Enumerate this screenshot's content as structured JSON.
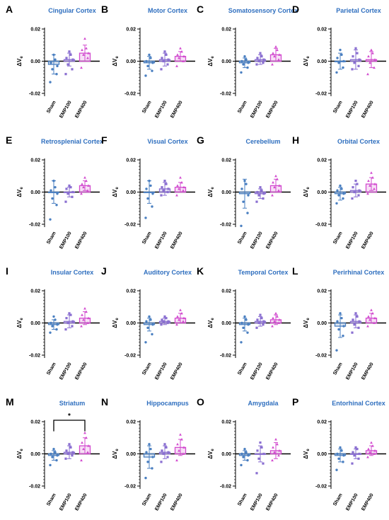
{
  "figure": {
    "groups": [
      "Sham",
      "EMP100",
      "EMP400"
    ],
    "group_colors": [
      "#4a7fc1",
      "#8a6fd1",
      "#d24ccf"
    ],
    "y_label_main": "ΔV",
    "y_label_sub": "e"
  },
  "chart_data": [
    {
      "letter": "A",
      "title": "Cingular Cortex",
      "type": "bar",
      "categories": [
        "Sham",
        "EMP100",
        "EMP400"
      ],
      "ylim": [
        -0.02,
        0.02
      ],
      "yticks": [
        0.02,
        0.0,
        -0.02
      ],
      "ytick_labels": [
        "0.02",
        "0.00",
        "-0.02"
      ],
      "series": [
        {
          "mean": -0.002,
          "sd": 0.006,
          "points": [
            -0.013,
            -0.008,
            -0.005,
            -0.003,
            -0.001,
            0.001,
            0.004
          ]
        },
        {
          "mean": 0.001,
          "sd": 0.004,
          "points": [
            -0.008,
            -0.005,
            -0.002,
            0.001,
            0.002,
            0.004,
            0.006
          ]
        },
        {
          "mean": 0.005,
          "sd": 0.005,
          "points": [
            -0.004,
            0.002,
            0.004,
            0.005,
            0.007,
            0.008,
            0.014
          ]
        }
      ]
    },
    {
      "letter": "B",
      "title": "Motor Cortex",
      "type": "bar",
      "categories": [
        "Sham",
        "EMP100",
        "EMP400"
      ],
      "ylim": [
        -0.02,
        0.02
      ],
      "yticks": [
        0.02,
        0.0,
        -0.02
      ],
      "ytick_labels": [
        "0.02",
        "0.00",
        "-0.02"
      ],
      "series": [
        {
          "mean": -0.001,
          "sd": 0.004,
          "points": [
            -0.009,
            -0.006,
            -0.003,
            -0.001,
            0.0,
            0.002,
            0.004
          ]
        },
        {
          "mean": 0.001,
          "sd": 0.004,
          "points": [
            -0.005,
            -0.002,
            0.0,
            0.001,
            0.002,
            0.004,
            0.006
          ]
        },
        {
          "mean": 0.003,
          "sd": 0.003,
          "points": [
            -0.003,
            0.0,
            0.002,
            0.003,
            0.004,
            0.006,
            0.008
          ]
        }
      ]
    },
    {
      "letter": "C",
      "title": "Somatosensory Cortex",
      "type": "bar",
      "categories": [
        "Sham",
        "EMP100",
        "EMP400"
      ],
      "ylim": [
        -0.02,
        0.02
      ],
      "yticks": [
        0.02,
        0.0,
        -0.02
      ],
      "ytick_labels": [
        "0.02",
        "0.00",
        "-0.02"
      ],
      "series": [
        {
          "mean": -0.001,
          "sd": 0.003,
          "points": [
            -0.007,
            -0.004,
            -0.002,
            -0.001,
            0.0,
            0.001,
            0.003
          ]
        },
        {
          "mean": 0.001,
          "sd": 0.003,
          "points": [
            -0.002,
            -0.001,
            0.0,
            0.001,
            0.002,
            0.003,
            0.005
          ]
        },
        {
          "mean": 0.004,
          "sd": 0.004,
          "points": [
            -0.002,
            0.001,
            0.003,
            0.004,
            0.005,
            0.007,
            0.009
          ]
        }
      ]
    },
    {
      "letter": "D",
      "title": "Parietal Cortex",
      "type": "bar",
      "categories": [
        "Sham",
        "EMP100",
        "EMP400"
      ],
      "ylim": [
        -0.02,
        0.02
      ],
      "yticks": [
        0.02,
        0.0,
        -0.02
      ],
      "ytick_labels": [
        "0.02",
        "0.00",
        "-0.02"
      ],
      "series": [
        {
          "mean": 0.0,
          "sd": 0.005,
          "points": [
            -0.007,
            -0.004,
            -0.001,
            0.0,
            0.002,
            0.004,
            0.007
          ]
        },
        {
          "mean": 0.001,
          "sd": 0.006,
          "points": [
            -0.005,
            -0.003,
            -0.001,
            0.001,
            0.003,
            0.005,
            0.008
          ]
        },
        {
          "mean": 0.001,
          "sd": 0.005,
          "points": [
            -0.008,
            -0.004,
            -0.001,
            0.001,
            0.003,
            0.005,
            0.007
          ]
        }
      ]
    },
    {
      "letter": "E",
      "title": "Retrosplenial Cortex",
      "type": "bar",
      "categories": [
        "Sham",
        "EMP100",
        "EMP400"
      ],
      "ylim": [
        -0.02,
        0.02
      ],
      "yticks": [
        0.02,
        0.0,
        -0.02
      ],
      "ytick_labels": [
        "0.02",
        "0.00",
        "-0.02"
      ],
      "series": [
        {
          "mean": 0.0,
          "sd": 0.007,
          "points": [
            -0.017,
            -0.008,
            -0.004,
            -0.001,
            0.001,
            0.003,
            0.007
          ]
        },
        {
          "mean": 0.0,
          "sd": 0.003,
          "points": [
            -0.006,
            -0.003,
            -0.001,
            0.0,
            0.002,
            0.003,
            0.004
          ]
        },
        {
          "mean": 0.004,
          "sd": 0.003,
          "points": [
            -0.001,
            0.001,
            0.003,
            0.004,
            0.005,
            0.007,
            0.009
          ]
        }
      ]
    },
    {
      "letter": "F",
      "title": "Visual Cortex",
      "type": "bar",
      "categories": [
        "Sham",
        "EMP100",
        "EMP400"
      ],
      "ylim": [
        -0.02,
        0.02
      ],
      "yticks": [
        0.02,
        0.0,
        -0.02
      ],
      "ytick_labels": [
        "0.02",
        "0.00",
        "-0.02"
      ],
      "series": [
        {
          "mean": 0.0,
          "sd": 0.007,
          "points": [
            -0.016,
            -0.009,
            -0.004,
            -0.001,
            0.002,
            0.004,
            0.007
          ]
        },
        {
          "mean": 0.002,
          "sd": 0.004,
          "points": [
            -0.002,
            0.0,
            0.001,
            0.002,
            0.003,
            0.005,
            0.007
          ]
        },
        {
          "mean": 0.003,
          "sd": 0.003,
          "points": [
            -0.002,
            0.001,
            0.002,
            0.003,
            0.004,
            0.006,
            0.009
          ]
        }
      ]
    },
    {
      "letter": "G",
      "title": "Cerebellum",
      "type": "bar",
      "categories": [
        "Sham",
        "EMP100",
        "EMP400"
      ],
      "ylim": [
        -0.02,
        0.02
      ],
      "yticks": [
        0.02,
        0.0,
        -0.02
      ],
      "ytick_labels": [
        "0.02",
        "0.00",
        "-0.02"
      ],
      "series": [
        {
          "mean": -0.001,
          "sd": 0.009,
          "points": [
            -0.021,
            -0.013,
            -0.006,
            -0.002,
            0.002,
            0.005,
            0.007
          ]
        },
        {
          "mean": -0.001,
          "sd": 0.003,
          "points": [
            -0.006,
            -0.004,
            -0.002,
            -0.001,
            0.0,
            0.001,
            0.003
          ]
        },
        {
          "mean": 0.004,
          "sd": 0.004,
          "points": [
            -0.002,
            0.001,
            0.003,
            0.004,
            0.006,
            0.008,
            0.01
          ]
        }
      ]
    },
    {
      "letter": "H",
      "title": "Orbital Cortex",
      "type": "bar",
      "categories": [
        "Sham",
        "EMP100",
        "EMP400"
      ],
      "ylim": [
        -0.02,
        0.02
      ],
      "yticks": [
        0.02,
        0.0,
        -0.02
      ],
      "ytick_labels": [
        "0.02",
        "0.00",
        "-0.02"
      ],
      "series": [
        {
          "mean": -0.001,
          "sd": 0.004,
          "points": [
            -0.007,
            -0.004,
            -0.002,
            -0.001,
            0.001,
            0.002,
            0.004
          ]
        },
        {
          "mean": 0.001,
          "sd": 0.004,
          "points": [
            -0.004,
            -0.002,
            0.0,
            0.001,
            0.003,
            0.005,
            0.007
          ]
        },
        {
          "mean": 0.005,
          "sd": 0.004,
          "points": [
            -0.001,
            0.002,
            0.004,
            0.005,
            0.007,
            0.009,
            0.012
          ]
        }
      ]
    },
    {
      "letter": "I",
      "title": "Insular Cortex",
      "type": "bar",
      "categories": [
        "Sham",
        "EMP100",
        "EMP400"
      ],
      "ylim": [
        -0.02,
        0.02
      ],
      "yticks": [
        0.02,
        0.0,
        -0.02
      ],
      "ytick_labels": [
        "0.02",
        "0.00",
        "-0.02"
      ],
      "series": [
        {
          "mean": -0.001,
          "sd": 0.003,
          "points": [
            -0.006,
            -0.004,
            -0.002,
            -0.001,
            0.0,
            0.002,
            0.004
          ]
        },
        {
          "mean": 0.001,
          "sd": 0.004,
          "points": [
            -0.004,
            -0.002,
            0.0,
            0.001,
            0.003,
            0.005,
            0.006
          ]
        },
        {
          "mean": 0.003,
          "sd": 0.004,
          "points": [
            -0.002,
            0.0,
            0.002,
            0.003,
            0.005,
            0.007,
            0.009
          ]
        }
      ]
    },
    {
      "letter": "J",
      "title": "Auditory Cortex",
      "type": "bar",
      "categories": [
        "Sham",
        "EMP100",
        "EMP400"
      ],
      "ylim": [
        -0.02,
        0.02
      ],
      "yticks": [
        0.02,
        0.0,
        -0.02
      ],
      "ytick_labels": [
        "0.02",
        "0.00",
        "-0.02"
      ],
      "series": [
        {
          "mean": -0.001,
          "sd": 0.004,
          "points": [
            -0.012,
            -0.007,
            -0.003,
            -0.001,
            0.001,
            0.002,
            0.004
          ]
        },
        {
          "mean": 0.001,
          "sd": 0.002,
          "points": [
            -0.001,
            0.0,
            0.001,
            0.001,
            0.002,
            0.003,
            0.004
          ]
        },
        {
          "mean": 0.003,
          "sd": 0.003,
          "points": [
            -0.001,
            0.001,
            0.002,
            0.003,
            0.004,
            0.006,
            0.008
          ]
        }
      ]
    },
    {
      "letter": "K",
      "title": "Temporal Cortex",
      "type": "bar",
      "categories": [
        "Sham",
        "EMP100",
        "EMP400"
      ],
      "ylim": [
        -0.02,
        0.02
      ],
      "yticks": [
        0.02,
        0.0,
        -0.02
      ],
      "ytick_labels": [
        "0.02",
        "0.00",
        "-0.02"
      ],
      "series": [
        {
          "mean": -0.001,
          "sd": 0.004,
          "points": [
            -0.012,
            -0.006,
            -0.003,
            -0.001,
            0.0,
            0.002,
            0.004
          ]
        },
        {
          "mean": 0.001,
          "sd": 0.003,
          "points": [
            -0.003,
            -0.001,
            0.0,
            0.001,
            0.002,
            0.003,
            0.005
          ]
        },
        {
          "mean": 0.002,
          "sd": 0.003,
          "points": [
            -0.002,
            0.0,
            0.001,
            0.002,
            0.003,
            0.004,
            0.006
          ]
        }
      ]
    },
    {
      "letter": "L",
      "title": "Perirhinal Cortex",
      "type": "bar",
      "categories": [
        "Sham",
        "EMP100",
        "EMP400"
      ],
      "ylim": [
        -0.02,
        0.02
      ],
      "yticks": [
        0.02,
        0.0,
        -0.02
      ],
      "ytick_labels": [
        "0.02",
        "0.00",
        "-0.02"
      ],
      "series": [
        {
          "mean": -0.002,
          "sd": 0.007,
          "points": [
            -0.017,
            -0.008,
            -0.004,
            -0.002,
            0.001,
            0.003,
            0.006
          ]
        },
        {
          "mean": 0.001,
          "sd": 0.004,
          "points": [
            -0.006,
            -0.003,
            -0.001,
            0.001,
            0.002,
            0.004,
            0.006
          ]
        },
        {
          "mean": 0.003,
          "sd": 0.003,
          "points": [
            -0.002,
            0.0,
            0.002,
            0.003,
            0.004,
            0.006,
            0.008
          ]
        }
      ]
    },
    {
      "letter": "M",
      "title": "Striatum",
      "type": "bar",
      "categories": [
        "Sham",
        "EMP100",
        "EMP400"
      ],
      "ylim": [
        -0.02,
        0.02
      ],
      "yticks": [
        0.02,
        0.0,
        -0.02
      ],
      "ytick_labels": [
        "0.02",
        "0.00",
        "-0.02"
      ],
      "significance": {
        "from": 0,
        "to": 2,
        "label": "*"
      },
      "series": [
        {
          "mean": -0.001,
          "sd": 0.003,
          "points": [
            -0.007,
            -0.004,
            -0.002,
            -0.001,
            0.0,
            0.001,
            0.003
          ]
        },
        {
          "mean": 0.001,
          "sd": 0.004,
          "points": [
            -0.003,
            -0.001,
            0.0,
            0.001,
            0.002,
            0.004,
            0.006
          ]
        },
        {
          "mean": 0.005,
          "sd": 0.005,
          "points": [
            -0.004,
            0.001,
            0.003,
            0.005,
            0.007,
            0.01,
            0.013
          ]
        }
      ]
    },
    {
      "letter": "N",
      "title": "Hippocampus",
      "type": "bar",
      "categories": [
        "Sham",
        "EMP100",
        "EMP400"
      ],
      "ylim": [
        -0.02,
        0.02
      ],
      "yticks": [
        0.02,
        0.0,
        -0.02
      ],
      "ytick_labels": [
        "0.02",
        "0.00",
        "-0.02"
      ],
      "series": [
        {
          "mean": -0.002,
          "sd": 0.007,
          "points": [
            -0.015,
            -0.009,
            -0.005,
            -0.002,
            0.001,
            0.003,
            0.006
          ]
        },
        {
          "mean": 0.001,
          "sd": 0.004,
          "points": [
            -0.005,
            -0.002,
            0.0,
            0.001,
            0.002,
            0.004,
            0.006
          ]
        },
        {
          "mean": 0.004,
          "sd": 0.005,
          "points": [
            -0.004,
            0.0,
            0.002,
            0.004,
            0.006,
            0.009,
            0.012
          ]
        }
      ]
    },
    {
      "letter": "O",
      "title": "Amygdala",
      "type": "bar",
      "categories": [
        "Sham",
        "EMP100",
        "EMP400"
      ],
      "ylim": [
        -0.02,
        0.02
      ],
      "yticks": [
        0.02,
        0.0,
        -0.02
      ],
      "ytick_labels": [
        "0.02",
        "0.00",
        "-0.02"
      ],
      "series": [
        {
          "mean": -0.001,
          "sd": 0.003,
          "points": [
            -0.007,
            -0.004,
            -0.002,
            -0.001,
            0.0,
            0.001,
            0.003
          ]
        },
        {
          "mean": 0.0,
          "sd": 0.005,
          "points": [
            -0.012,
            -0.006,
            -0.003,
            0.0,
            0.002,
            0.004,
            0.007
          ]
        },
        {
          "mean": 0.002,
          "sd": 0.005,
          "points": [
            -0.004,
            -0.001,
            0.001,
            0.002,
            0.004,
            0.006,
            0.009
          ]
        }
      ]
    },
    {
      "letter": "P",
      "title": "Entorhinal Cortex",
      "type": "bar",
      "categories": [
        "Sham",
        "EMP100",
        "EMP400"
      ],
      "ylim": [
        -0.02,
        0.02
      ],
      "yticks": [
        0.02,
        0.0,
        -0.02
      ],
      "ytick_labels": [
        "0.02",
        "0.00",
        "-0.02"
      ],
      "series": [
        {
          "mean": -0.001,
          "sd": 0.004,
          "points": [
            -0.01,
            -0.005,
            -0.003,
            -0.001,
            0.0,
            0.002,
            0.004
          ]
        },
        {
          "mean": 0.0,
          "sd": 0.003,
          "points": [
            -0.006,
            -0.003,
            -0.001,
            0.0,
            0.001,
            0.003,
            0.004
          ]
        },
        {
          "mean": 0.002,
          "sd": 0.003,
          "points": [
            -0.002,
            0.0,
            0.001,
            0.002,
            0.003,
            0.005,
            0.007
          ]
        }
      ]
    }
  ]
}
